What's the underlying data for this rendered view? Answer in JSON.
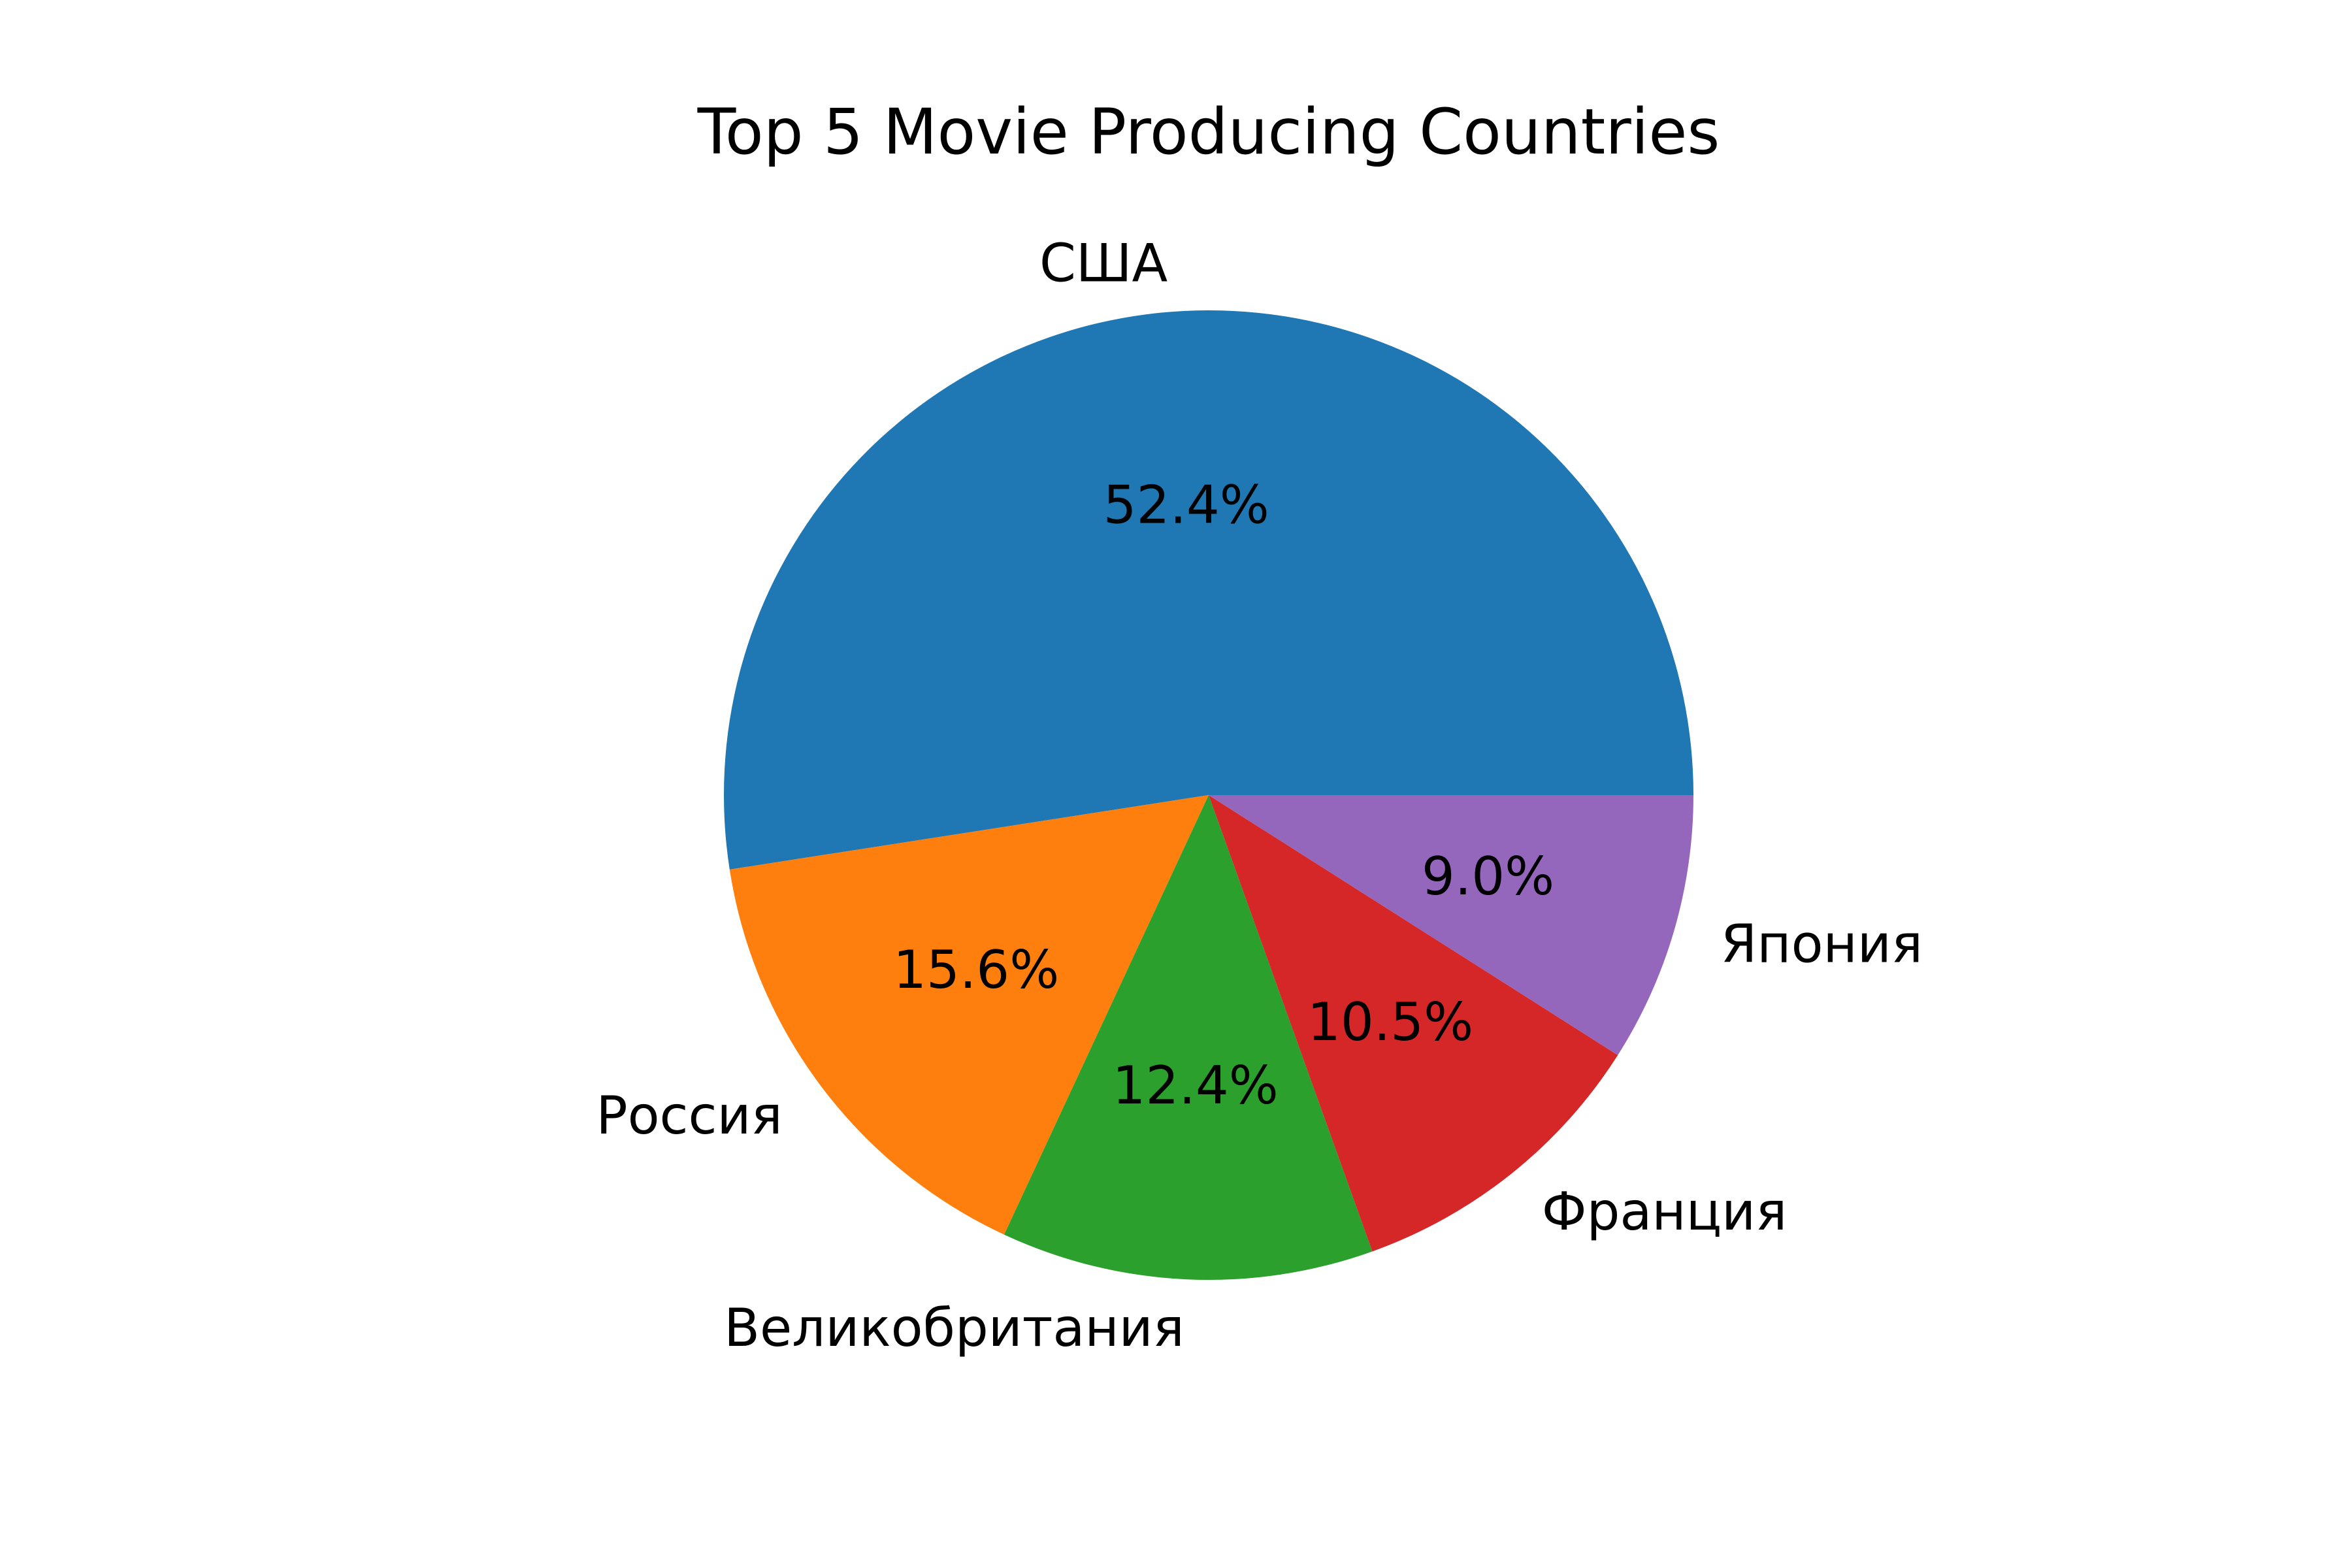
{
  "chart_data": {
    "type": "pie",
    "title": "Top 5 Movie Producing Countries",
    "start_angle_deg": 0,
    "direction": "counterclockwise",
    "slices": [
      {
        "label": "США",
        "value": 52.4,
        "pct_label": "52.4%",
        "color": "#1f77b4"
      },
      {
        "label": "Россия",
        "value": 15.6,
        "pct_label": "15.6%",
        "color": "#ff7f0e"
      },
      {
        "label": "Великобритания",
        "value": 12.4,
        "pct_label": "12.4%",
        "color": "#2ca02c"
      },
      {
        "label": "Франция",
        "value": 10.5,
        "pct_label": "10.5%",
        "color": "#d62728"
      },
      {
        "label": "Япония",
        "value": 9.0,
        "pct_label": "9.0%",
        "color": "#9467bd"
      }
    ]
  }
}
